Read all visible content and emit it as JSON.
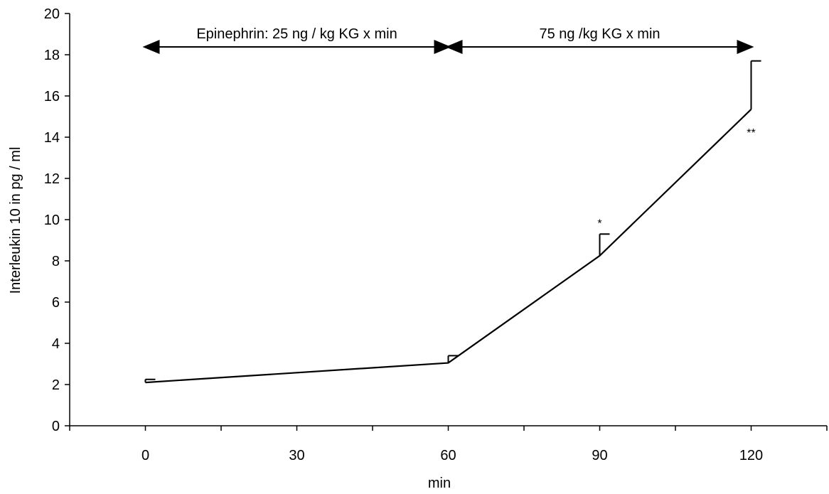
{
  "chart_data": {
    "type": "line",
    "xlabel": "min",
    "ylabel": "Interleukin 10 in pg / ml",
    "xlim": [
      -15,
      135
    ],
    "ylim": [
      0,
      20
    ],
    "x_ticks": [
      0,
      30,
      60,
      90,
      120
    ],
    "y_ticks": [
      0,
      2,
      4,
      6,
      8,
      10,
      12,
      14,
      16,
      18,
      20
    ],
    "grid": false,
    "series": [
      {
        "x": [
          0,
          60,
          90,
          120
        ],
        "values": [
          2.1,
          3.05,
          8.25,
          15.35
        ],
        "error_upper": [
          2.25,
          3.4,
          9.3,
          17.7
        ],
        "color": "#000000"
      }
    ],
    "significance": [
      {
        "x": 90,
        "label": "*"
      },
      {
        "x": 120,
        "label": "**"
      }
    ],
    "annotations": [
      {
        "label": "Epinephrin: 25 ng / kg KG x min",
        "x_start": 0,
        "x_end": 60
      },
      {
        "label": "75 ng /kg KG x min",
        "x_start": 60,
        "x_end": 120
      }
    ]
  }
}
